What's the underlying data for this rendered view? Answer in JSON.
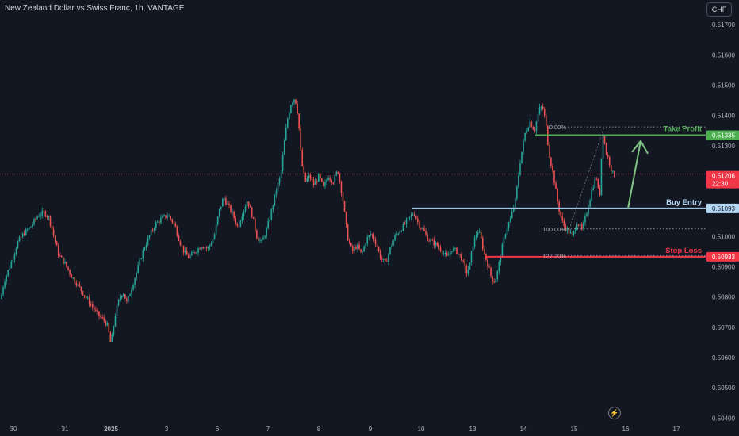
{
  "header": {
    "symbol_title": "New Zealand Dollar vs Swiss Franc, 1h, VANTAGE",
    "currency_button": "CHF"
  },
  "colors": {
    "background": "#131722",
    "up_candle": "#26a69a",
    "down_candle": "#ef5350",
    "take_profit": "#4caf50",
    "buy_entry": "#b2d8f5",
    "stop_loss": "#f23645",
    "current_price": "#f23645",
    "axis_text": "#b2b5be"
  },
  "chart_data": {
    "type": "candlestick",
    "title": "New Zealand Dollar vs Swiss Franc, 1h, VANTAGE",
    "x_ticks": [
      "30",
      "31",
      "2025",
      "3",
      "6",
      "7",
      "8",
      "9",
      "10",
      "13",
      "14",
      "15",
      "16",
      "17"
    ],
    "y_ticks": [
      "0.51700",
      "0.51600",
      "0.51500",
      "0.51400",
      "0.51300",
      "0.51000",
      "0.50900",
      "0.50800",
      "0.50700",
      "0.50600",
      "0.50500",
      "0.50400"
    ],
    "ylim": [
      0.50385,
      0.51745
    ],
    "price_path": [
      [
        0,
        0.5078
      ],
      [
        5,
        0.5085
      ],
      [
        15,
        0.5092
      ],
      [
        22,
        0.5098
      ],
      [
        30,
        0.5101
      ],
      [
        38,
        0.5103
      ],
      [
        48,
        0.5107
      ],
      [
        56,
        0.5108
      ],
      [
        62,
        0.5106
      ],
      [
        68,
        0.51
      ],
      [
        74,
        0.5094
      ],
      [
        82,
        0.5091
      ],
      [
        90,
        0.5087
      ],
      [
        98,
        0.5084
      ],
      [
        108,
        0.508
      ],
      [
        116,
        0.5077
      ],
      [
        124,
        0.5074
      ],
      [
        132,
        0.5072
      ],
      [
        136,
        0.507
      ],
      [
        140,
        0.5064
      ],
      [
        142,
        0.5068
      ],
      [
        146,
        0.5075
      ],
      [
        150,
        0.5079
      ],
      [
        155,
        0.5082
      ],
      [
        160,
        0.5078
      ],
      [
        166,
        0.5083
      ],
      [
        172,
        0.5088
      ],
      [
        180,
        0.5095
      ],
      [
        188,
        0.51
      ],
      [
        196,
        0.5104
      ],
      [
        204,
        0.5106
      ],
      [
        212,
        0.5107
      ],
      [
        220,
        0.5104
      ],
      [
        226,
        0.5099
      ],
      [
        232,
        0.5095
      ],
      [
        238,
        0.5093
      ],
      [
        246,
        0.5095
      ],
      [
        254,
        0.5097
      ],
      [
        262,
        0.5096
      ],
      [
        270,
        0.51
      ],
      [
        276,
        0.5108
      ],
      [
        282,
        0.5113
      ],
      [
        288,
        0.511
      ],
      [
        294,
        0.5107
      ],
      [
        300,
        0.5103
      ],
      [
        306,
        0.5108
      ],
      [
        312,
        0.5112
      ],
      [
        318,
        0.5107
      ],
      [
        324,
        0.51
      ],
      [
        330,
        0.5098
      ],
      [
        336,
        0.5102
      ],
      [
        342,
        0.5108
      ],
      [
        348,
        0.5115
      ],
      [
        354,
        0.512
      ],
      [
        358,
        0.513
      ],
      [
        362,
        0.5138
      ],
      [
        367,
        0.5144
      ],
      [
        372,
        0.5146
      ],
      [
        376,
        0.514
      ],
      [
        380,
        0.5125
      ],
      [
        385,
        0.5118
      ],
      [
        390,
        0.512
      ],
      [
        396,
        0.5117
      ],
      [
        402,
        0.512
      ],
      [
        408,
        0.5116
      ],
      [
        414,
        0.512
      ],
      [
        420,
        0.5118
      ],
      [
        426,
        0.5122
      ],
      [
        432,
        0.5113
      ],
      [
        438,
        0.51
      ],
      [
        444,
        0.5095
      ],
      [
        450,
        0.5097
      ],
      [
        456,
        0.5094
      ],
      [
        462,
        0.5099
      ],
      [
        468,
        0.5101
      ],
      [
        474,
        0.5098
      ],
      [
        480,
        0.5093
      ],
      [
        486,
        0.5091
      ],
      [
        492,
        0.5096
      ],
      [
        498,
        0.51
      ],
      [
        504,
        0.5102
      ],
      [
        510,
        0.5104
      ],
      [
        516,
        0.5106
      ],
      [
        522,
        0.5108
      ],
      [
        528,
        0.5104
      ],
      [
        534,
        0.5102
      ],
      [
        540,
        0.5099
      ],
      [
        546,
        0.5098
      ],
      [
        552,
        0.5097
      ],
      [
        558,
        0.5095
      ],
      [
        564,
        0.5093
      ],
      [
        570,
        0.5096
      ],
      [
        576,
        0.5095
      ],
      [
        582,
        0.5093
      ],
      [
        588,
        0.5088
      ],
      [
        592,
        0.509
      ],
      [
        596,
        0.5097
      ],
      [
        602,
        0.5102
      ],
      [
        606,
        0.51
      ],
      [
        610,
        0.5095
      ],
      [
        616,
        0.509
      ],
      [
        620,
        0.5086
      ],
      [
        624,
        0.5085
      ],
      [
        628,
        0.5089
      ],
      [
        632,
        0.5095
      ],
      [
        638,
        0.5102
      ],
      [
        644,
        0.5106
      ],
      [
        650,
        0.5112
      ],
      [
        656,
        0.5125
      ],
      [
        662,
        0.5134
      ],
      [
        668,
        0.5138
      ],
      [
        674,
        0.5135
      ],
      [
        680,
        0.5142
      ],
      [
        684,
        0.5143
      ],
      [
        688,
        0.5138
      ],
      [
        692,
        0.5128
      ],
      [
        698,
        0.512
      ],
      [
        704,
        0.511
      ],
      [
        710,
        0.5104
      ],
      [
        716,
        0.5102
      ],
      [
        722,
        0.51
      ],
      [
        728,
        0.5105
      ],
      [
        734,
        0.5102
      ],
      [
        740,
        0.5108
      ],
      [
        746,
        0.5115
      ],
      [
        752,
        0.512
      ],
      [
        756,
        0.5112
      ],
      [
        760,
        0.5135
      ],
      [
        764,
        0.5128
      ],
      [
        768,
        0.5125
      ],
      [
        772,
        0.5121
      ],
      [
        776,
        0.512
      ]
    ],
    "levels": [
      {
        "label": "Take Profit",
        "value": 0.51335,
        "badge": "0.51335"
      },
      {
        "label": "Buy Entry",
        "value": 0.51093,
        "badge": "0.51093"
      },
      {
        "label": "Stop Loss",
        "value": 0.50933,
        "badge": "0.50933"
      }
    ],
    "fib_levels": [
      {
        "label": "0.00%",
        "value": 0.51362
      },
      {
        "label": "100.00%",
        "value": 0.51025
      },
      {
        "label": "127.20%",
        "value": 0.50936
      }
    ],
    "current_price": {
      "value": 0.51206,
      "badge": "0.51206",
      "countdown": "22:30"
    },
    "projection_arrow": {
      "from": 0.51093,
      "to": 0.513
    }
  }
}
